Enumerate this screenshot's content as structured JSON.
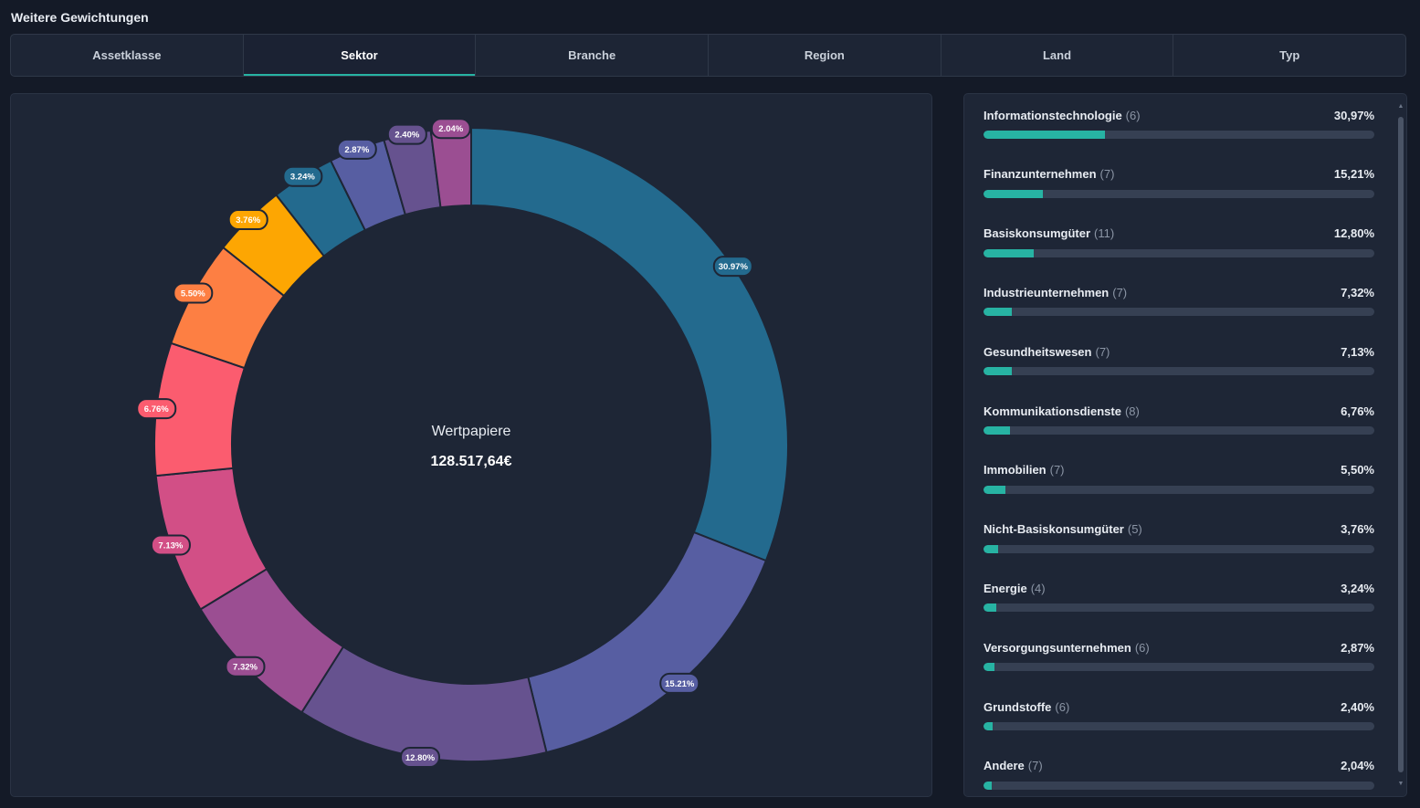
{
  "section_title": "Weitere Gewichtungen",
  "tabs": [
    {
      "label": "Assetklasse",
      "active": false
    },
    {
      "label": "Sektor",
      "active": true
    },
    {
      "label": "Branche",
      "active": false
    },
    {
      "label": "Region",
      "active": false
    },
    {
      "label": "Land",
      "active": false
    },
    {
      "label": "Typ",
      "active": false
    }
  ],
  "center": {
    "label": "Wertpapiere",
    "value": "128.517,64€"
  },
  "chart_data": {
    "type": "pie",
    "variant": "donut",
    "slices": [
      {
        "label": "30.97%",
        "value": 30.97,
        "color": "#236a8e"
      },
      {
        "label": "15.21%",
        "value": 15.21,
        "color": "#575ea2"
      },
      {
        "label": "12.80%",
        "value": 12.8,
        "color": "#66528f"
      },
      {
        "label": "7.32%",
        "value": 7.32,
        "color": "#9b4e92"
      },
      {
        "label": "7.13%",
        "value": 7.13,
        "color": "#d24f86"
      },
      {
        "label": "6.76%",
        "value": 6.76,
        "color": "#fb5c6f"
      },
      {
        "label": "5.50%",
        "value": 5.5,
        "color": "#fd7f43"
      },
      {
        "label": "3.76%",
        "value": 3.76,
        "color": "#fda602"
      },
      {
        "label": "3.24%",
        "value": 3.24,
        "color": "#236a8e"
      },
      {
        "label": "2.87%",
        "value": 2.87,
        "color": "#575ea2"
      },
      {
        "label": "2.40%",
        "value": 2.4,
        "color": "#66528f"
      },
      {
        "label": "2.04%",
        "value": 2.04,
        "color": "#9b4e92"
      }
    ]
  },
  "list": [
    {
      "name": "Informationstechnologie",
      "count": "(6)",
      "pct": "30,97%",
      "value": 30.97
    },
    {
      "name": "Finanzunternehmen",
      "count": "(7)",
      "pct": "15,21%",
      "value": 15.21
    },
    {
      "name": "Basiskonsumgüter",
      "count": "(11)",
      "pct": "12,80%",
      "value": 12.8
    },
    {
      "name": "Industrieunternehmen",
      "count": "(7)",
      "pct": "7,32%",
      "value": 7.32
    },
    {
      "name": "Gesundheitswesen",
      "count": "(7)",
      "pct": "7,13%",
      "value": 7.13
    },
    {
      "name": "Kommunikationsdienste",
      "count": "(8)",
      "pct": "6,76%",
      "value": 6.76
    },
    {
      "name": "Immobilien",
      "count": "(7)",
      "pct": "5,50%",
      "value": 5.5
    },
    {
      "name": "Nicht-Basiskonsumgüter",
      "count": "(5)",
      "pct": "3,76%",
      "value": 3.76
    },
    {
      "name": "Energie",
      "count": "(4)",
      "pct": "3,24%",
      "value": 3.24
    },
    {
      "name": "Versorgungsunternehmen",
      "count": "(6)",
      "pct": "2,87%",
      "value": 2.87
    },
    {
      "name": "Grundstoffe",
      "count": "(6)",
      "pct": "2,40%",
      "value": 2.4
    },
    {
      "name": "Andere",
      "count": "(7)",
      "pct": "2,04%",
      "value": 2.04
    }
  ],
  "bar_color": "#27b3a3"
}
